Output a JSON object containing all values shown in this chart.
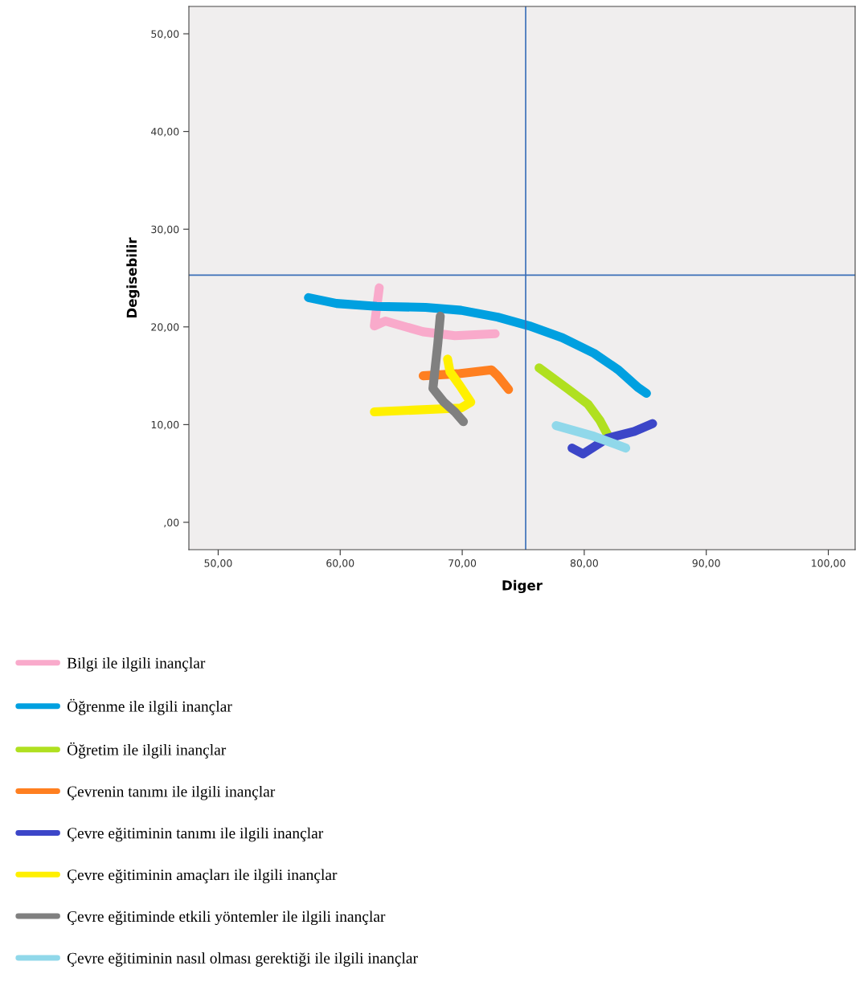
{
  "chart_data": {
    "type": "line",
    "xlabel": "Diger",
    "ylabel": "Degisebilir",
    "xlim": [
      47.6,
      102.2
    ],
    "ylim": [
      -2.8,
      52.8
    ],
    "xticks": [
      {
        "value": 50,
        "label": "50,00"
      },
      {
        "value": 60,
        "label": "60,00"
      },
      {
        "value": 70,
        "label": "70,00"
      },
      {
        "value": 80,
        "label": "80,00"
      },
      {
        "value": 90,
        "label": "90,00"
      },
      {
        "value": 100,
        "label": "100,00"
      }
    ],
    "yticks": [
      {
        "value": 0,
        "label": ",00"
      },
      {
        "value": 10,
        "label": "10,00"
      },
      {
        "value": 20,
        "label": "20,00"
      },
      {
        "value": 30,
        "label": "30,00"
      },
      {
        "value": 40,
        "label": "40,00"
      },
      {
        "value": 50,
        "label": "50,00"
      }
    ],
    "grid": false,
    "legend": "bottom",
    "marker": "none",
    "line_style": "solid",
    "ref_lines": [
      {
        "axis": "x",
        "value": 75.2,
        "color": "#3a6fb8"
      },
      {
        "axis": "y",
        "value": 25.3,
        "color": "#3a6fb8"
      }
    ],
    "series": [
      {
        "name": "Bilgi ile ilgili inançlar",
        "color": "#f9aacb",
        "x": [
          63.2,
          62.8,
          63.7,
          66.8,
          69.4,
          72.7
        ],
        "values": [
          24.0,
          20.1,
          20.6,
          19.5,
          19.1,
          19.3
        ]
      },
      {
        "name": "Öğrenme ile ilgili inançlar",
        "color": "#00a0e0",
        "x": [
          57.4,
          59.7,
          63.0,
          67.0,
          69.9,
          72.9,
          75.5,
          78.2,
          80.8,
          82.8,
          84.4,
          85.1
        ],
        "values": [
          23.0,
          22.4,
          22.1,
          22.0,
          21.7,
          21.0,
          20.1,
          18.9,
          17.3,
          15.6,
          13.8,
          13.2
        ]
      },
      {
        "name": "Öğretim ile ilgili inançlar",
        "color": "#b0e020",
        "x": [
          76.3,
          78.6,
          80.3,
          81.3,
          81.9
        ],
        "values": [
          15.8,
          13.7,
          12.1,
          10.4,
          9.0
        ]
      },
      {
        "name": "Çevrenin tanımı ile ilgili inançlar",
        "color": "#ff7f20",
        "x": [
          66.8,
          69.6,
          72.4,
          72.9,
          73.8
        ],
        "values": [
          15.0,
          15.2,
          15.6,
          15.0,
          13.6
        ]
      },
      {
        "name": "Çevre eğitiminin tanımı ile ilgili inançlar",
        "color": "#3c46c8",
        "x": [
          79.0,
          79.9,
          81.9,
          84.1,
          85.6
        ],
        "values": [
          7.6,
          7.0,
          8.6,
          9.3,
          10.1
        ]
      },
      {
        "name": "Çevre eğitiminin amaçları ile ilgili inançlar",
        "color": "#fff000",
        "x": [
          68.8,
          69.0,
          69.8,
          70.7,
          69.9,
          66.3,
          62.8
        ],
        "values": [
          16.7,
          15.4,
          14.0,
          12.3,
          11.7,
          11.5,
          11.3
        ]
      },
      {
        "name": "Çevre eğitiminde etkili yöntemler ile ilgili inançlar",
        "color": "#808080",
        "x": [
          68.2,
          68.0,
          67.6,
          68.5,
          69.4,
          70.1
        ],
        "values": [
          21.1,
          18.3,
          13.7,
          12.3,
          11.3,
          10.3
        ]
      },
      {
        "name": "Çevre eğitiminin nasıl olması gerektiği ile ilgili inançlar",
        "color": "#90d8ea",
        "x": [
          77.7,
          80.8,
          83.4
        ],
        "values": [
          9.9,
          8.8,
          7.6
        ]
      }
    ]
  }
}
